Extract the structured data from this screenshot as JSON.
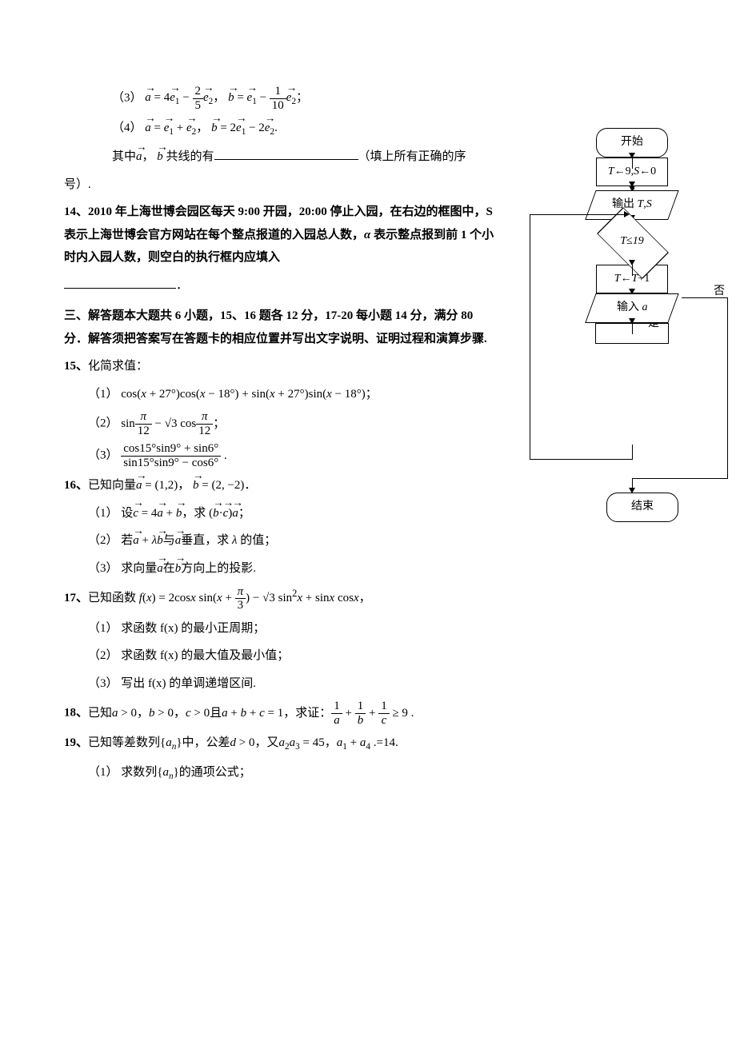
{
  "q13": {
    "item3_label": "（3）",
    "item3_math_html": "<span class='vec math'><i>a</i></span> = 4<span class='vec math'><i>e</i><sub>1</sub></span> − <span class='frac'><span class='num'>2</span><span class='den'>5</span></span><span class='vec math'><i>e</i><sub>2</sub></span>， <span class='vec math'><i>b</i></span> = <span class='vec math'><i>e</i><sub>1</sub></span> − <span class='frac'><span class='num'>1</span><span class='den'>10</span></span><span class='vec math'><i>e</i><sub>2</sub></span>；",
    "item4_label": "（4）",
    "item4_math_html": "<span class='vec math'><i>a</i></span> = <span class='vec math'><i>e</i><sub>1</sub></span> + <span class='vec math'><i>e</i><sub>2</sub></span>， <span class='vec math'><i>b</i></span> = 2<span class='vec math'><i>e</i><sub>1</sub></span> − 2<span class='vec math'><i>e</i><sub>2</sub></span>.",
    "tail_pre": "其中",
    "tail_mid_html": "<span class='vec math'><i>a</i></span>， <span class='vec math'><i>b</i></span> 共线的有",
    "tail_post": "（填上所有正确的序",
    "tail_line2": "号）."
  },
  "q14": {
    "label": "14、",
    "text": "2010 年上海世博会园区每天 9:00 开园，20:00 停止入园，在右边的框图中，S 表示上海世博会官方网站在每个整点报道的入园总人数，",
    "alpha_html": "<span class='math'><i>α</i></span> 表示整点报到前 1 个小时内入园人数，则空白的执行框内应填入"
  },
  "section3": {
    "title": "三、解答题本大题共 6 小题，15、16 题各 12 分，17-20 每小题 14 分，满分 80 分．解答须把答案写在答题卡的相应位置并写出文字说明、证明过程和演算步骤."
  },
  "q15": {
    "label": "15、",
    "title": "化简求值：",
    "p1_label": "（1）",
    "p1_math": "cos(<i>x</i> + 27°)cos(<i>x</i> − 18°) + sin(<i>x</i> + 27°)sin(<i>x</i> − 18°)；",
    "p2_label": "（2）",
    "p2_math_html": "sin<span class='frac'><span class='num'><i>π</i></span><span class='den'>12</span></span> − √3 cos<span class='frac'><span class='num'><i>π</i></span><span class='den'>12</span></span>；",
    "p3_label": "（3）",
    "p3_math_html": "<span class='frac'><span class='num'>cos15°sin9° + sin6°</span><span class='den'>sin15°sin9° − cos6°</span></span> ."
  },
  "q16": {
    "label": "16、",
    "stem_html": "已知向量<span class='vec math'><i>a</i></span> = (1,2)， <span class='vec math'><i>b</i></span> = (2, −2)．",
    "p1_label": "（1）",
    "p1_html": "设<span class='vec math'><i>c</i></span> = 4<span class='vec math'><i>a</i></span> + <span class='vec math'><i>b</i></span>，求 (<span class='vec math'><i>b</i></span>·<span class='vec math'><i>c</i></span>)<span class='vec math'><i>a</i></span>；",
    "p2_label": "（2）",
    "p2_html": "若<span class='vec math'><i>a</i></span> + <i>λ</i><span class='vec math'><i>b</i></span>与<span class='vec math'><i>a</i></span>垂直，求 <i>λ</i> 的值；",
    "p3_label": "（3）",
    "p3_html": "求向量<span class='vec math'><i>a</i></span>在<span class='vec math'><i>b</i></span>方向上的投影."
  },
  "q17": {
    "label": "17、",
    "stem_html": "已知函数 <span class='math'><i>f</i>(<i>x</i>)</span> = 2cos<i>x</i> sin(<i>x</i> + <span class='frac'><span class='num'><i>π</i></span><span class='den'>3</span></span>) − √3 sin<sup>2</sup><i>x</i> + sin<i>x</i> cos<i>x</i>，",
    "p1_label": "（1）",
    "p1": "求函数 f(x) 的最小正周期；",
    "p2_label": "（2）",
    "p2": "求函数 f(x) 的最大值及最小值；",
    "p3_label": "（3）",
    "p3": "写出 f(x) 的单调递增区间."
  },
  "q18": {
    "label": "18、",
    "stem_html": "已知<span class='math'><i>a</i> &gt; 0</span>，<span class='math'><i>b</i> &gt; 0</span>，<span class='math'><i>c</i> &gt; 0</span>且<span class='math'><i>a</i> + <i>b</i> + <i>c</i> = 1</span>，求证：<span class='frac'><span class='num'>1</span><span class='den'><i>a</i></span></span> + <span class='frac'><span class='num'>1</span><span class='den'><i>b</i></span></span> + <span class='frac'><span class='num'>1</span><span class='den'><i>c</i></span></span> ≥ 9 ."
  },
  "q19": {
    "label": "19、",
    "stem_html": "已知等差数列{<span class='math'><i>a<sub>n</sub></i></span>}中，公差<span class='math'><i>d</i> &gt; 0</span>，又<span class='math'><i>a</i><sub>2</sub><i>a</i><sub>3</sub> = 45</span>，<span class='math'><i>a</i><sub>1</sub> + <i>a</i><sub>4</sub> .=14.</span>",
    "p1_label": "（1）",
    "p1_html": "求数列{<span class='math'><i>a<sub>n</sub></i></span>}的通项公式；"
  },
  "flowchart": {
    "start": "开始",
    "init_html": "<i>T</i>←9,<i>S</i>←0",
    "output_html": "输出 <i>T</i>,<i>S</i>",
    "cond_html": "<i>T</i>≤19",
    "yes": "是",
    "no": "否",
    "step_html": "<i>T</i>←<i>T</i>+1",
    "input_html": "输入 <i>a</i>",
    "end": "结束",
    "colors": {
      "line": "#000000",
      "bg": "#ffffff"
    }
  }
}
